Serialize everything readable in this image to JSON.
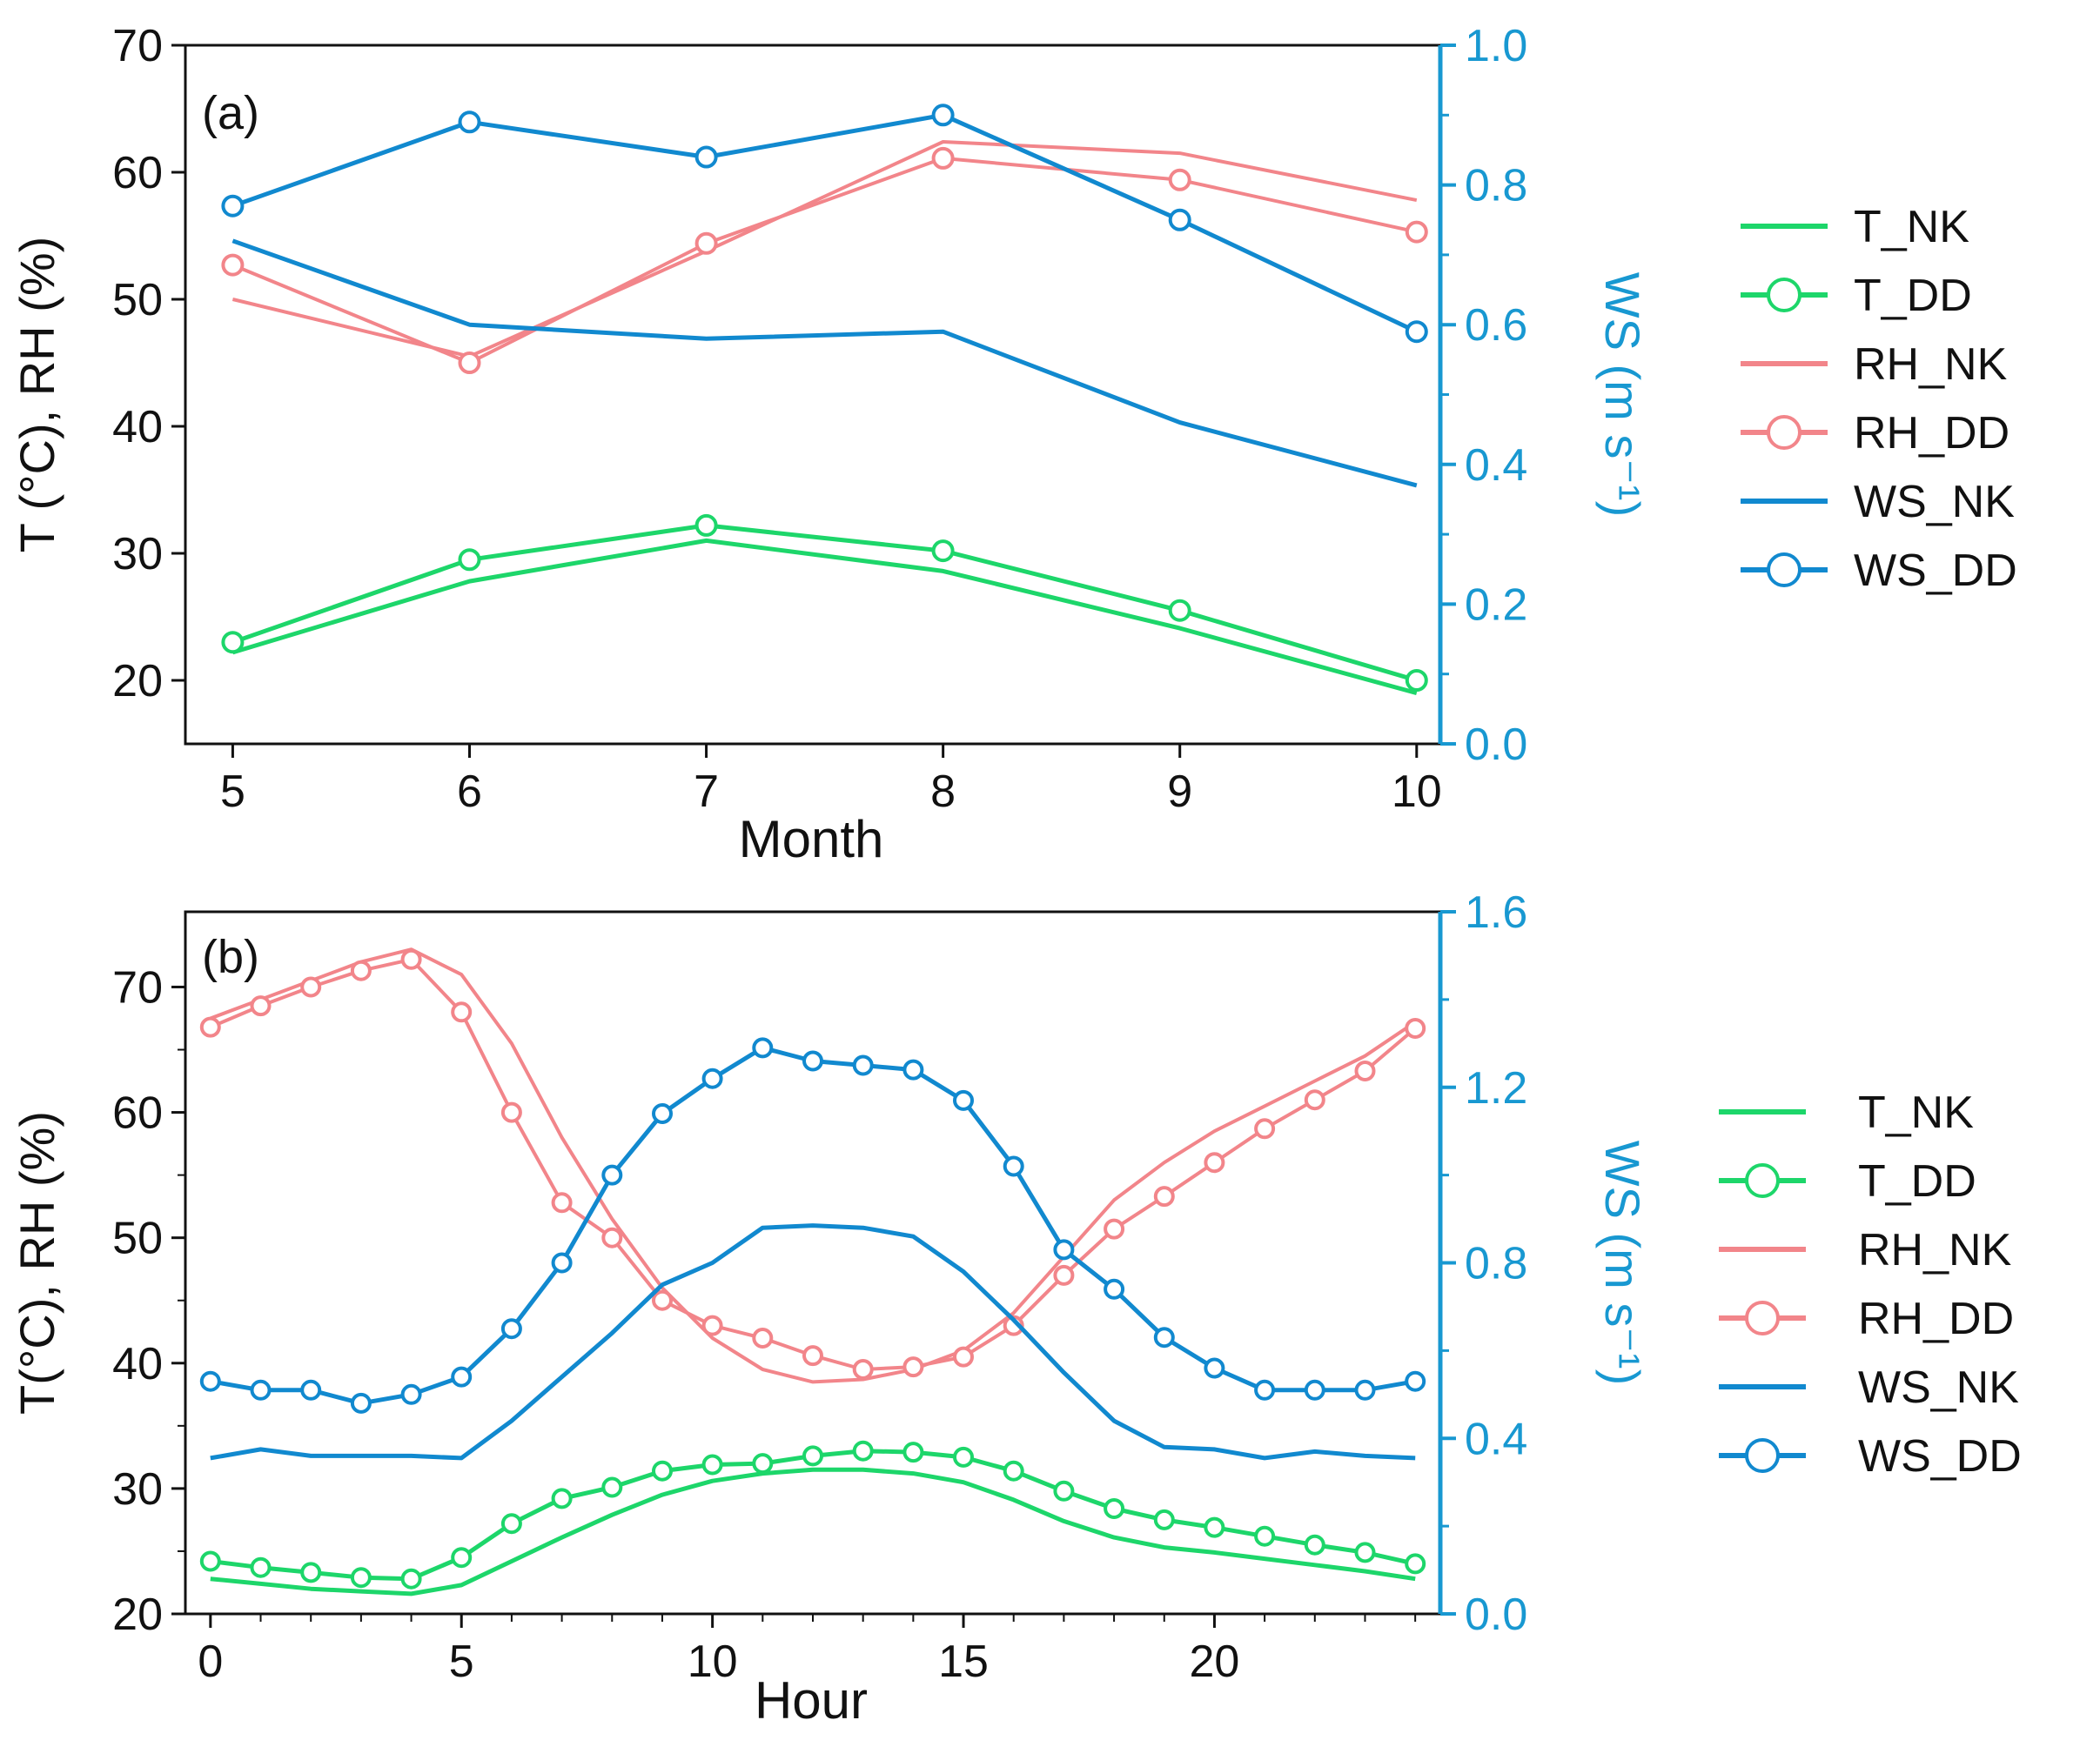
{
  "colors": {
    "T": "#1dd66a",
    "RH": "#f2858a",
    "WS": "#1189cf",
    "axis": "#111111",
    "right_axis": "#1898d1"
  },
  "chart_data": [
    {
      "type": "line",
      "panel_label": "(a)",
      "xlabel": "Month",
      "ylabel_left": "T (°C), RH (%)",
      "ylabel_right": "WS (m s⁻¹)",
      "xlim": [
        4.8,
        10.1
      ],
      "ylim_left": [
        15,
        70
      ],
      "ylim_right": [
        0.0,
        1.0
      ],
      "x_ticks": [
        5,
        6,
        7,
        8,
        9,
        10
      ],
      "x_tick_labels": [
        "5",
        "6",
        "7",
        "8",
        "9",
        "10"
      ],
      "y_left_ticks": [
        20,
        30,
        40,
        50,
        60,
        70
      ],
      "y_left_tick_labels": [
        "20",
        "30",
        "40",
        "50",
        "60",
        "70"
      ],
      "y_right_ticks": [
        0.0,
        0.2,
        0.4,
        0.6,
        0.8,
        1.0
      ],
      "y_right_tick_labels": [
        "0.0",
        "0.2",
        "0.4",
        "0.6",
        "0.8",
        "1.0"
      ],
      "series": [
        {
          "name": "T_NK",
          "key": "T",
          "axis": "left",
          "markers": false,
          "x": [
            5,
            6,
            7,
            8,
            9,
            10
          ],
          "values": [
            22.2,
            27.8,
            31.0,
            28.6,
            24.1,
            19.0
          ]
        },
        {
          "name": "T_DD",
          "key": "T",
          "axis": "left",
          "markers": true,
          "x": [
            5,
            6,
            7,
            8,
            9,
            10
          ],
          "values": [
            23.0,
            29.5,
            32.2,
            30.2,
            25.5,
            20.0
          ]
        },
        {
          "name": "RH_NK",
          "key": "RH",
          "axis": "left",
          "markers": false,
          "x": [
            5,
            6,
            7,
            8,
            9,
            10
          ],
          "values": [
            50.0,
            45.5,
            53.8,
            62.4,
            61.5,
            57.8
          ]
        },
        {
          "name": "RH_DD",
          "key": "RH",
          "axis": "left",
          "markers": true,
          "x": [
            5,
            6,
            7,
            8,
            9,
            10
          ],
          "values": [
            52.7,
            45.0,
            54.4,
            61.1,
            59.4,
            55.3
          ]
        },
        {
          "name": "WS_NK",
          "key": "WS",
          "axis": "right",
          "markers": false,
          "x": [
            5,
            6,
            7,
            8,
            9,
            10
          ],
          "values": [
            0.72,
            0.6,
            0.58,
            0.59,
            0.46,
            0.37
          ]
        },
        {
          "name": "WS_DD",
          "key": "WS",
          "axis": "right",
          "markers": true,
          "x": [
            5,
            6,
            7,
            8,
            9,
            10
          ],
          "values": [
            0.77,
            0.89,
            0.84,
            0.9,
            0.75,
            0.59
          ]
        }
      ],
      "legend": [
        "T_NK",
        "T_DD",
        "RH_NK",
        "RH_DD",
        "WS_NK",
        "WS_DD"
      ],
      "legend_position": "right"
    },
    {
      "type": "line",
      "panel_label": "(b)",
      "xlabel": "Hour",
      "ylabel_left": "T(°C), RH (%)",
      "ylabel_right": "WS (m s⁻¹)",
      "xlim": [
        -0.5,
        24.5
      ],
      "ylim_left": [
        20,
        76
      ],
      "ylim_right": [
        0.0,
        1.6
      ],
      "x_ticks": [
        0,
        5,
        10,
        15,
        20
      ],
      "x_tick_labels": [
        "0",
        "5",
        "10",
        "15",
        "20"
      ],
      "y_left_ticks": [
        20,
        30,
        40,
        50,
        60,
        70
      ],
      "y_left_tick_labels": [
        "20",
        "30",
        "40",
        "50",
        "60",
        "70"
      ],
      "y_right_ticks": [
        0.0,
        0.4,
        0.8,
        1.2,
        1.6
      ],
      "y_right_tick_labels": [
        "0.0",
        "0.4",
        "0.8",
        "1.2",
        "1.6"
      ],
      "x_values": [
        0,
        1,
        2,
        3,
        4,
        5,
        6,
        7,
        8,
        9,
        10,
        11,
        12,
        13,
        14,
        15,
        16,
        17,
        18,
        19,
        20,
        21,
        22,
        23,
        24
      ],
      "series": [
        {
          "name": "T_NK",
          "key": "T",
          "axis": "left",
          "markers": false,
          "values": [
            22.8,
            22.4,
            22.0,
            21.8,
            21.6,
            22.3,
            24.2,
            26.1,
            27.9,
            29.5,
            30.6,
            31.2,
            31.5,
            31.5,
            31.2,
            30.5,
            29.1,
            27.4,
            26.1,
            25.3,
            24.9,
            24.4,
            23.9,
            23.4,
            22.8
          ]
        },
        {
          "name": "T_DD",
          "key": "T",
          "axis": "left",
          "markers": true,
          "values": [
            24.2,
            23.7,
            23.3,
            22.9,
            22.8,
            24.5,
            27.2,
            29.2,
            30.1,
            31.4,
            31.9,
            32.0,
            32.6,
            33.0,
            32.9,
            32.5,
            31.4,
            29.8,
            28.4,
            27.5,
            26.9,
            26.2,
            25.5,
            24.9,
            24.0
          ]
        },
        {
          "name": "RH_NK",
          "key": "RH",
          "axis": "left",
          "markers": false,
          "values": [
            67.5,
            69.0,
            70.5,
            72.0,
            73.0,
            71.0,
            65.5,
            58.0,
            51.5,
            46.0,
            42.0,
            39.5,
            38.5,
            38.7,
            39.5,
            41.0,
            44.0,
            48.5,
            53.0,
            56.0,
            58.5,
            60.5,
            62.5,
            64.5,
            67.2
          ]
        },
        {
          "name": "RH_DD",
          "key": "RH",
          "axis": "left",
          "markers": true,
          "values": [
            66.8,
            68.5,
            70.0,
            71.3,
            72.2,
            68.0,
            60.0,
            52.8,
            50.0,
            45.0,
            43.0,
            42.0,
            40.6,
            39.5,
            39.7,
            40.5,
            43.0,
            47.0,
            50.7,
            53.3,
            56.0,
            58.7,
            61.0,
            63.3,
            66.7
          ]
        },
        {
          "name": "WS_NK",
          "key": "WS",
          "axis": "right",
          "markers": false,
          "values": [
            0.355,
            0.375,
            0.36,
            0.36,
            0.36,
            0.355,
            0.44,
            0.54,
            0.64,
            0.75,
            0.8,
            0.88,
            0.885,
            0.88,
            0.86,
            0.78,
            0.67,
            0.55,
            0.44,
            0.38,
            0.375,
            0.355,
            0.37,
            0.36,
            0.355
          ]
        },
        {
          "name": "WS_DD",
          "key": "WS",
          "axis": "right",
          "markers": true,
          "values": [
            0.53,
            0.51,
            0.51,
            0.48,
            0.5,
            0.54,
            0.65,
            0.8,
            1.0,
            1.14,
            1.22,
            1.29,
            1.26,
            1.25,
            1.24,
            1.17,
            1.02,
            0.83,
            0.74,
            0.63,
            0.56,
            0.51,
            0.51,
            0.51,
            0.53
          ]
        }
      ],
      "legend": [
        "T_NK",
        "T_DD",
        "RH_NK",
        "RH_DD",
        "WS_NK",
        "WS_DD"
      ],
      "legend_position": "right"
    }
  ]
}
